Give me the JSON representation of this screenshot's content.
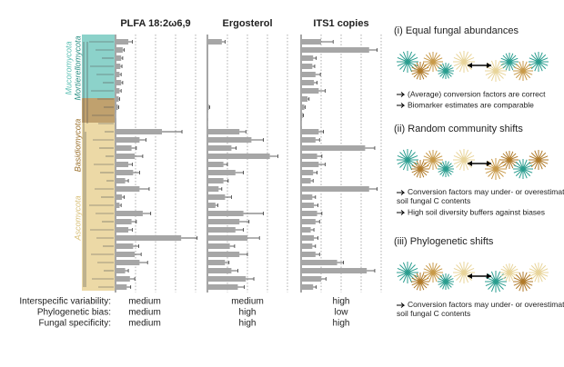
{
  "panels": [
    {
      "title": "PLFA 18:2ω6,9",
      "values": [
        16,
        9,
        7,
        6,
        5,
        7,
        5,
        4,
        3,
        1,
        0,
        58,
        30,
        20,
        24,
        16,
        22,
        12,
        30,
        8,
        5,
        34,
        20,
        16,
        82,
        22,
        24,
        30,
        12,
        18,
        14
      ],
      "errors": [
        5,
        2,
        2,
        2,
        2,
        2,
        2,
        1,
        1,
        0,
        0,
        25,
        8,
        6,
        10,
        5,
        8,
        4,
        12,
        3,
        2,
        10,
        6,
        5,
        20,
        7,
        8,
        10,
        4,
        6,
        5
      ]
    },
    {
      "title": "Ergosterol",
      "values": [
        18,
        0,
        0,
        0,
        0,
        0,
        0,
        0,
        2,
        1,
        1,
        40,
        55,
        30,
        78,
        20,
        35,
        20,
        14,
        22,
        10,
        45,
        40,
        35,
        50,
        28,
        40,
        22,
        30,
        48,
        38
      ],
      "errors": [
        4,
        0,
        0,
        0,
        0,
        0,
        0,
        0,
        1,
        0,
        0,
        8,
        15,
        6,
        10,
        5,
        10,
        6,
        4,
        8,
        3,
        25,
        12,
        10,
        15,
        6,
        10,
        5,
        8,
        10,
        8
      ]
    },
    {
      "title": "ITS1 copies",
      "values": [
        25,
        85,
        15,
        14,
        18,
        16,
        22,
        8,
        4,
        2,
        1,
        22,
        18,
        80,
        20,
        22,
        15,
        12,
        85,
        14,
        16,
        20,
        18,
        12,
        16,
        14,
        18,
        45,
        82,
        25,
        15
      ],
      "errors": [
        15,
        10,
        4,
        3,
        6,
        4,
        8,
        2,
        1,
        1,
        0,
        6,
        5,
        12,
        6,
        8,
        5,
        3,
        10,
        4,
        5,
        6,
        5,
        4,
        5,
        4,
        5,
        8,
        10,
        6,
        4
      ]
    }
  ],
  "clades": [
    "Mucoromycota",
    "Mortierellomycota",
    "Basidiomycota",
    "Ascomycota"
  ],
  "table": {
    "rows": [
      [
        "Interspecific variability:",
        "medium",
        "medium",
        "high"
      ],
      [
        "Phylogenetic bias:",
        "medium",
        "high",
        "low"
      ],
      [
        "Fungal specificity:",
        "medium",
        "high",
        "high"
      ]
    ]
  },
  "scenarios": [
    {
      "title": "(i) Equal fungal abundances",
      "bullets": [
        "(Average) conversion factors are correct",
        "Biomarker estimates are comparable"
      ]
    },
    {
      "title": "(ii) Random community shifts",
      "bullets": [
        "Conversion factors may under- or overestimate soil fungal C contents",
        "High soil diversity buffers against biases"
      ]
    },
    {
      "title": "(iii) Phylogenetic shifts",
      "bullets": [
        "Conversion factors may under- or overestimate soil fungal C contents"
      ]
    }
  ]
}
